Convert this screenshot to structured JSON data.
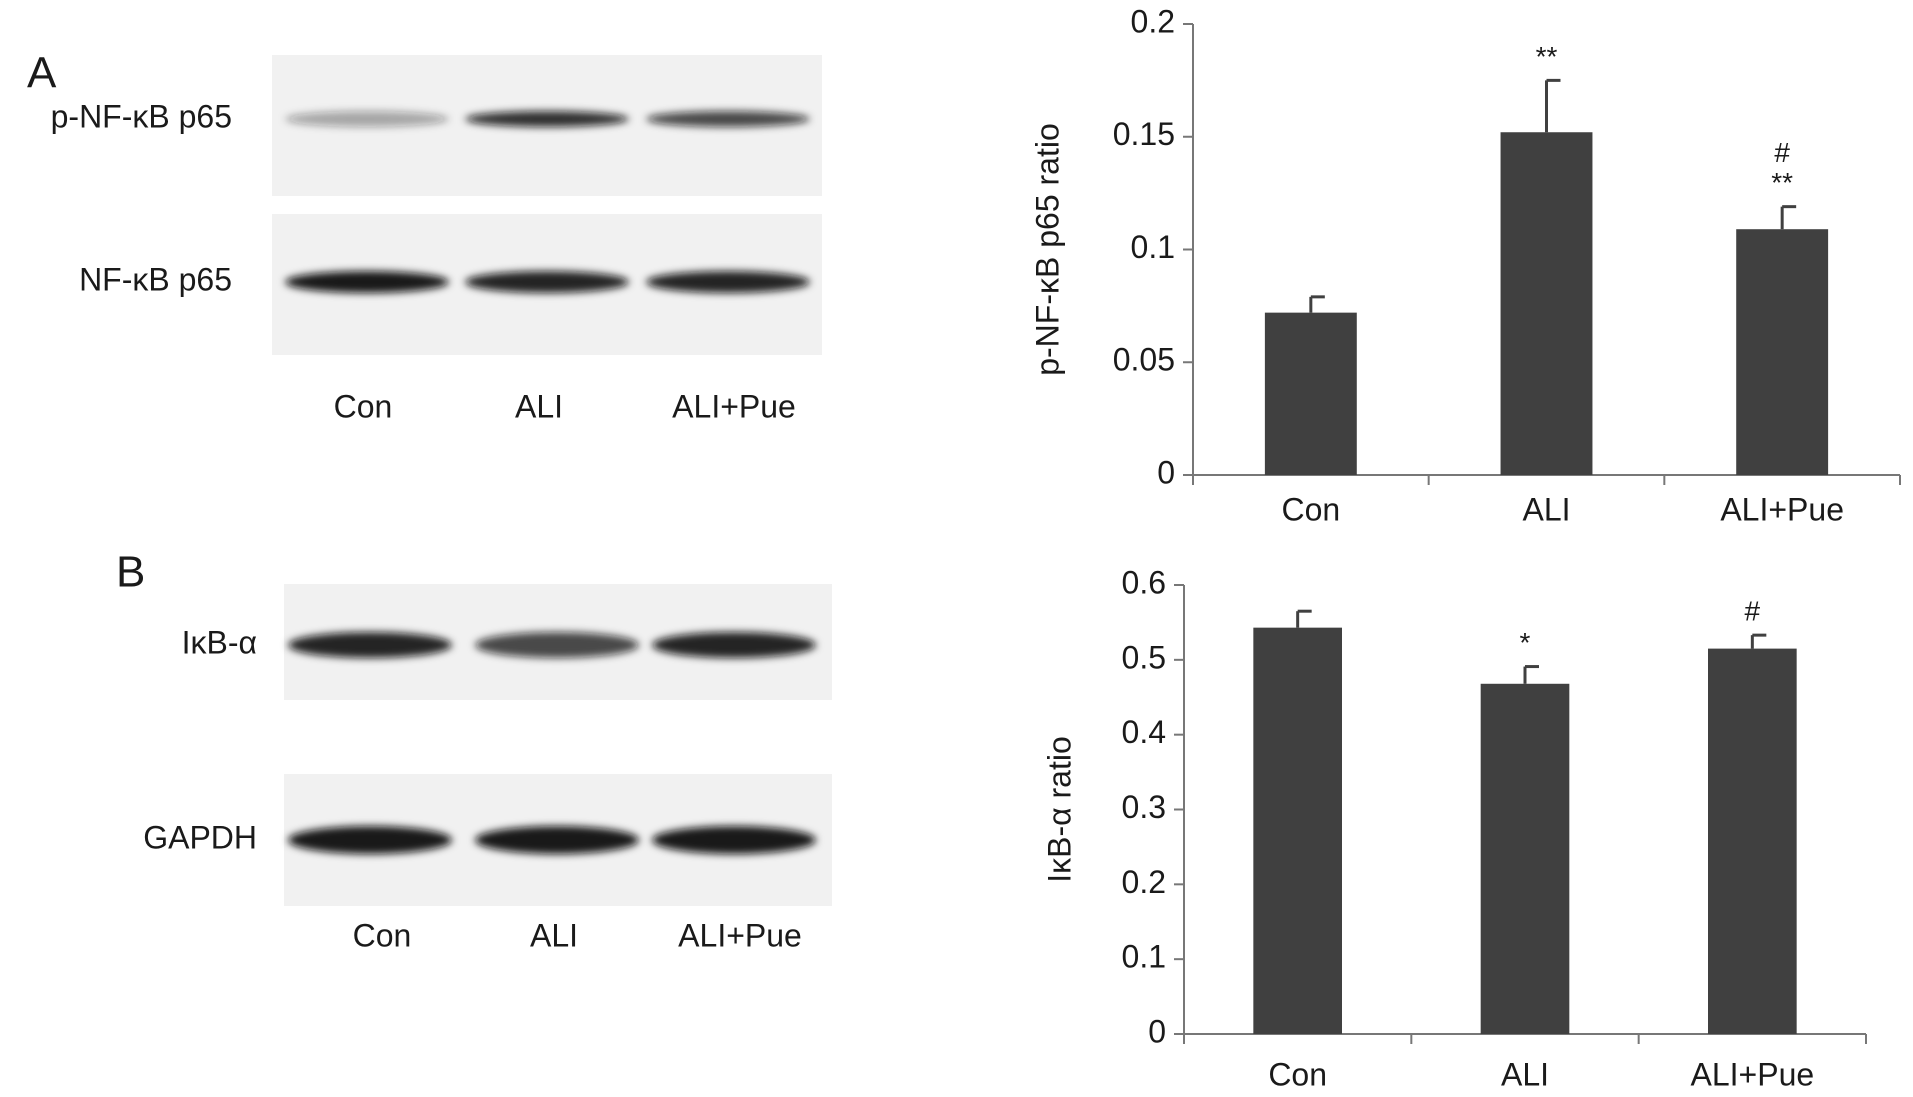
{
  "panels": {
    "A": {
      "label": "A",
      "rows": [
        "p-NF-κB p65",
        "NF-κB p65"
      ],
      "lanes": [
        "Con",
        "ALI",
        "ALI+Pue"
      ]
    },
    "B": {
      "label": "B",
      "rows": [
        "IκB-α",
        "GAPDH"
      ],
      "lanes": [
        "Con",
        "ALI",
        "ALI+Pue"
      ]
    }
  },
  "chart_data": [
    {
      "type": "bar",
      "y_label": "p-NF-κB p65 ratio",
      "categories": [
        "Con",
        "ALI",
        "ALI+Pue"
      ],
      "values": [
        0.072,
        0.152,
        0.109
      ],
      "errors": [
        0.007,
        0.023,
        0.01
      ],
      "color": "#404040",
      "markers": [
        null,
        [
          "**"
        ],
        [
          "#",
          "**"
        ]
      ],
      "ylim": [
        0,
        0.2
      ],
      "yticks": [
        0,
        0.05,
        0.1,
        0.15,
        0.2
      ]
    },
    {
      "type": "bar",
      "y_label": "IκB-α ratio",
      "categories": [
        "Con",
        "ALI",
        "ALI+Pue"
      ],
      "values": [
        0.543,
        0.468,
        0.515
      ],
      "errors": [
        0.022,
        0.023,
        0.018
      ],
      "color": "#404040",
      "markers": [
        null,
        [
          "*"
        ],
        [
          "#"
        ]
      ],
      "ylim": [
        0,
        0.6
      ],
      "yticks": [
        0,
        0.1,
        0.2,
        0.3,
        0.4,
        0.5,
        0.6
      ]
    }
  ]
}
